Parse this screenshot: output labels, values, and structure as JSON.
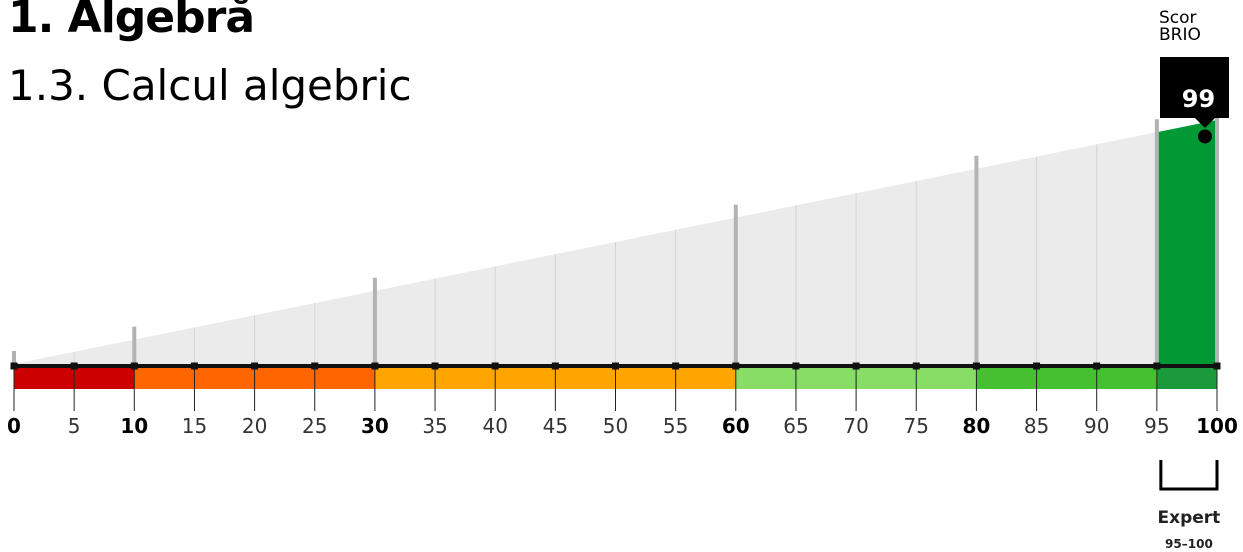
{
  "header": {
    "title": "1. Algebră",
    "subtitle": "1.3. Calcul algebric"
  },
  "score": {
    "label_line1": "Scor",
    "label_line2": "BRIO",
    "value": "99"
  },
  "chart_data": {
    "type": "bar",
    "xlim": [
      0,
      100
    ],
    "score": 99,
    "ticks": [
      "0",
      "5",
      "10",
      "15",
      "20",
      "25",
      "30",
      "35",
      "40",
      "45",
      "50",
      "55",
      "60",
      "65",
      "70",
      "75",
      "80",
      "85",
      "90",
      "95",
      "100"
    ],
    "tick_values": [
      0,
      5,
      10,
      15,
      20,
      25,
      30,
      35,
      40,
      45,
      50,
      55,
      60,
      65,
      70,
      75,
      80,
      85,
      90,
      95,
      100
    ],
    "bold_ticks": [
      0,
      10,
      30,
      60,
      80,
      100
    ],
    "bands": [
      {
        "from": 0,
        "to": 10,
        "color": "#cc0000"
      },
      {
        "from": 10,
        "to": 30,
        "color": "#ff6600"
      },
      {
        "from": 30,
        "to": 60,
        "color": "#ffa500"
      },
      {
        "from": 60,
        "to": 80,
        "color": "#88dd66"
      },
      {
        "from": 80,
        "to": 95,
        "color": "#44c030"
      },
      {
        "from": 95,
        "to": 100,
        "color": "#1a9a3a"
      }
    ],
    "highlight": {
      "from": 95,
      "to": 100,
      "label": "Expert",
      "range_label": "95–100",
      "color": "#009933"
    },
    "colors": {
      "wedge": "#ebebeb",
      "grid": "#d4d4d4",
      "grid_major": "#b3b3b3",
      "baseline": "#111111"
    }
  }
}
